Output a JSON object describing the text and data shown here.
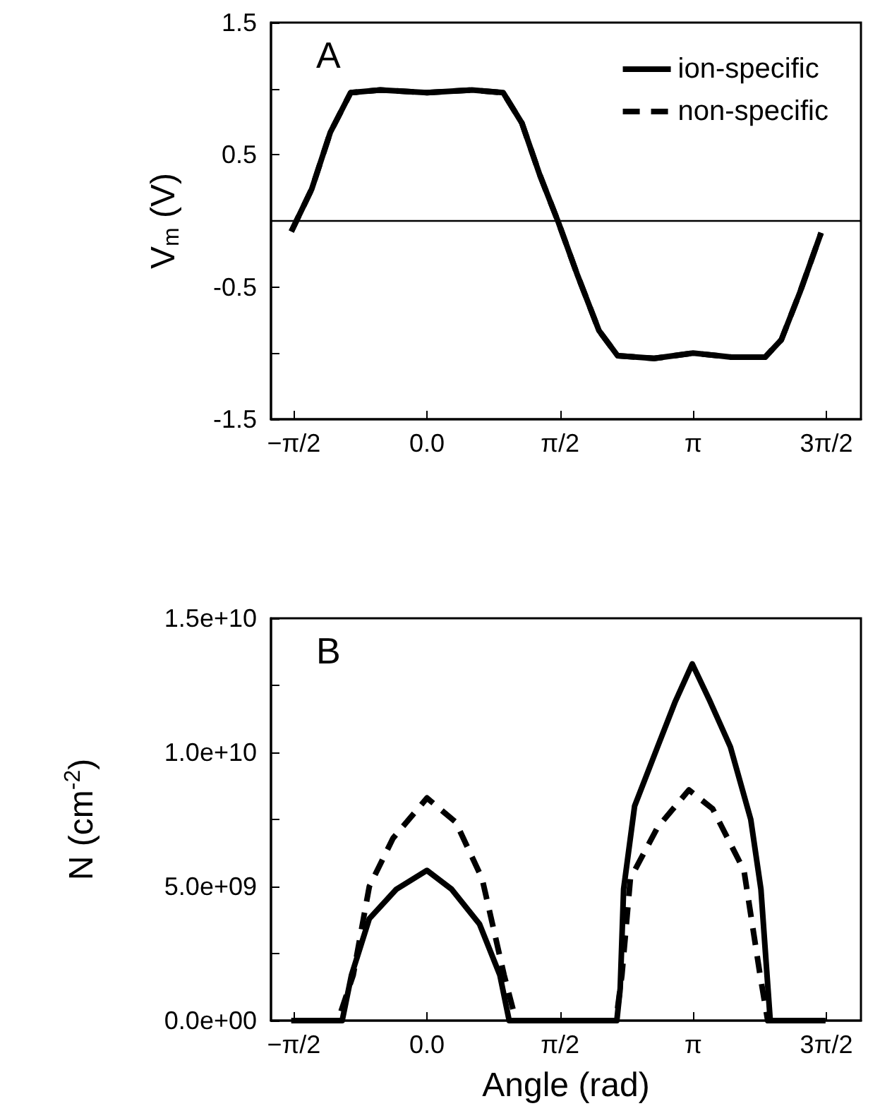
{
  "chart_data": [
    {
      "type": "line",
      "ylabel": "V$_{m}$ (V)",
      "annotations": [
        "A"
      ],
      "legend": "top right",
      "grid": false,
      "marker": "none",
      "xlim": [
        -1.84,
        5.12
      ],
      "xticks": [
        {
          "value": -1.5708,
          "label": "−π/2"
        },
        {
          "value": 0,
          "label": "0.0"
        },
        {
          "value": 1.5708,
          "label": "π/2"
        },
        {
          "value": 3.1416,
          "label": "π"
        },
        {
          "value": 4.7124,
          "label": "3π/2"
        }
      ],
      "ylim": [
        -1.5,
        1.5
      ],
      "yticks": [
        {
          "value": -1.5,
          "label": "-1.5"
        },
        {
          "value": -1,
          "label": null
        },
        {
          "value": -0.5,
          "label": "-0.5"
        },
        {
          "value": 0,
          "label": null
        },
        {
          "value": 0.5,
          "label": "0.5"
        },
        {
          "value": 1,
          "label": null
        },
        {
          "value": 1.5,
          "label": "1.5"
        }
      ],
      "ref_lines": [
        {
          "axis": "y",
          "value": 0,
          "color": "#000000",
          "line_style": "solid"
        }
      ],
      "series": [
        {
          "name": "ion-specific",
          "color": "#000000",
          "line_style": "solid",
          "x": [
            -1.6,
            -1.36,
            -1.14,
            -0.9,
            -0.55,
            0.0,
            0.53,
            0.9,
            1.12,
            1.33,
            1.55,
            1.77,
            2.03,
            2.25,
            2.68,
            3.14,
            3.59,
            3.99,
            4.18,
            4.4,
            4.65
          ],
          "values": [
            -0.08,
            0.24,
            0.67,
            0.97,
            0.99,
            0.97,
            0.99,
            0.97,
            0.74,
            0.35,
            -0.01,
            -0.4,
            -0.83,
            -1.02,
            -1.04,
            -1.0,
            -1.03,
            -1.03,
            -0.9,
            -0.54,
            -0.09
          ]
        },
        {
          "name": "non-specific",
          "color": "#000000",
          "line_style": "dashed",
          "x": [
            -1.6,
            -1.36,
            -1.14,
            -0.9,
            -0.55,
            0.0,
            0.53,
            0.9,
            1.12,
            1.33,
            1.55,
            1.77,
            2.03,
            2.25,
            2.68,
            3.14,
            3.59,
            3.99,
            4.18,
            4.4,
            4.65
          ],
          "values": [
            -0.08,
            0.24,
            0.67,
            0.97,
            0.99,
            0.97,
            0.99,
            0.97,
            0.74,
            0.35,
            -0.01,
            -0.4,
            -0.83,
            -1.02,
            -1.04,
            -1.0,
            -1.03,
            -1.03,
            -0.9,
            -0.54,
            -0.09
          ]
        }
      ]
    },
    {
      "type": "line",
      "xlabel": "Angle (rad)",
      "ylabel": "N (cm$^{-2}$)",
      "annotations": [
        "B"
      ],
      "legend": false,
      "grid": false,
      "marker": "none",
      "xlim": [
        -1.84,
        5.12
      ],
      "xticks": [
        {
          "value": -1.5708,
          "label": "−π/2"
        },
        {
          "value": 0,
          "label": "0.0"
        },
        {
          "value": 1.5708,
          "label": "π/2"
        },
        {
          "value": 3.1416,
          "label": "π"
        },
        {
          "value": 4.7124,
          "label": "3π/2"
        }
      ],
      "ylim": [
        0,
        15000000000
      ],
      "yticks": [
        {
          "value": 0,
          "label": "0.0e+00"
        },
        {
          "value": 2500000000,
          "label": null
        },
        {
          "value": 5000000000,
          "label": "5.0e+09"
        },
        {
          "value": 7500000000,
          "label": null
        },
        {
          "value": 10000000000,
          "label": "1.0e+10"
        },
        {
          "value": 12500000000,
          "label": null
        },
        {
          "value": 15000000000,
          "label": "1.5e+10"
        }
      ],
      "series": [
        {
          "color": "#000000",
          "line_style": "solid",
          "x": [
            -1.6,
            -1.0,
            -0.89,
            -0.68,
            -0.36,
            0.0,
            0.29,
            0.62,
            0.86,
            0.97,
            2.24,
            2.28,
            2.32,
            2.45,
            2.72,
            2.93,
            3.13,
            3.34,
            3.58,
            3.82,
            3.94,
            4.05,
            4.7
          ],
          "values": [
            0,
            0,
            1700000000,
            3800000000,
            4900000000,
            5600000000,
            4900000000,
            3600000000,
            1700000000,
            0,
            0,
            1200000000,
            4900000000,
            8000000000,
            10200000000,
            11900000000,
            13300000000,
            11900000000,
            10200000000,
            7500000000,
            4900000000,
            0,
            0
          ]
        },
        {
          "color": "#000000",
          "line_style": "dashed",
          "x": [
            -1.6,
            -1.05,
            -0.87,
            -0.68,
            -0.4,
            0.0,
            0.34,
            0.65,
            0.91,
            1.05,
            2.23,
            2.3,
            2.4,
            2.72,
            3.09,
            3.37,
            3.74,
            3.93,
            4.02,
            4.7
          ],
          "values": [
            0,
            0,
            1700000000,
            5000000000,
            6800000000,
            8300000000,
            7400000000,
            5300000000,
            1700000000,
            0,
            0,
            1700000000,
            5300000000,
            7200000000,
            8600000000,
            7900000000,
            5600000000,
            1700000000,
            0,
            0
          ]
        }
      ]
    }
  ]
}
